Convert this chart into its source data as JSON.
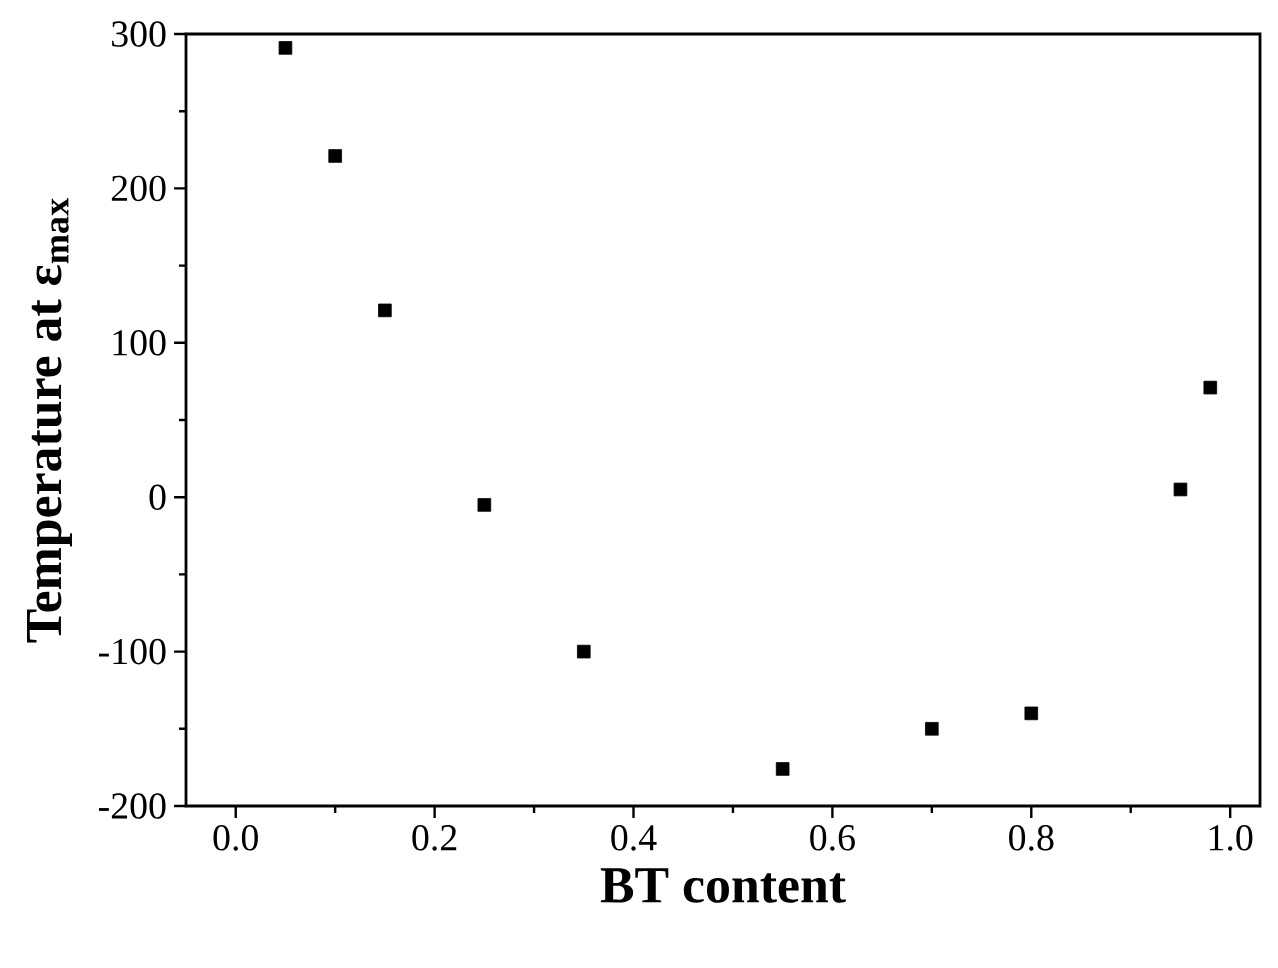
{
  "chart_data": {
    "type": "scatter",
    "xlabel": "BT content",
    "ylabel": "Temperature at ε$_{max}$",
    "x": [
      0.05,
      0.1,
      0.15,
      0.25,
      0.35,
      0.55,
      0.7,
      0.8,
      0.95,
      0.98
    ],
    "series": [
      {
        "color": "#000000",
        "values": [
          291,
          221,
          121,
          -5,
          -100,
          -176,
          -150,
          -140,
          5,
          71
        ]
      }
    ],
    "marker": "square",
    "xlim": [
      -0.05,
      1.03
    ],
    "ylim": [
      -200,
      300
    ],
    "xticks": [
      {
        "value": 0,
        "label": "0.0"
      },
      {
        "value": 0.2,
        "label": "0.2"
      },
      {
        "value": 0.4,
        "label": "0.4"
      },
      {
        "value": 0.6,
        "label": "0.6"
      },
      {
        "value": 0.8,
        "label": "0.8"
      },
      {
        "value": 1,
        "label": "1.0"
      }
    ],
    "yticks": [
      -200,
      -100,
      0,
      100,
      200,
      300
    ],
    "grid": false
  }
}
